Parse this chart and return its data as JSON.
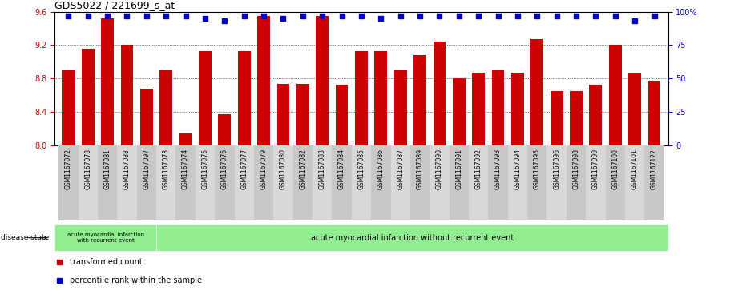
{
  "title": "GDS5022 / 221699_s_at",
  "samples": [
    "GSM1167072",
    "GSM1167078",
    "GSM1167081",
    "GSM1167088",
    "GSM1167097",
    "GSM1167073",
    "GSM1167074",
    "GSM1167075",
    "GSM1167076",
    "GSM1167077",
    "GSM1167079",
    "GSM1167080",
    "GSM1167082",
    "GSM1167083",
    "GSM1167084",
    "GSM1167085",
    "GSM1167086",
    "GSM1167087",
    "GSM1167089",
    "GSM1167090",
    "GSM1167091",
    "GSM1167092",
    "GSM1167093",
    "GSM1167094",
    "GSM1167095",
    "GSM1167096",
    "GSM1167098",
    "GSM1167099",
    "GSM1167100",
    "GSM1167101",
    "GSM1167122"
  ],
  "bar_values": [
    8.9,
    9.15,
    9.52,
    9.2,
    8.68,
    8.9,
    8.14,
    9.13,
    8.37,
    9.13,
    9.55,
    8.73,
    8.73,
    9.55,
    8.72,
    9.13,
    9.13,
    8.9,
    9.08,
    9.24,
    8.8,
    8.87,
    8.9,
    8.87,
    9.27,
    8.65,
    8.65,
    8.72,
    9.2,
    8.87,
    8.77
  ],
  "percentile_values": [
    97,
    97,
    97,
    97,
    97,
    97,
    97,
    95,
    93,
    97,
    97,
    95,
    97,
    97,
    97,
    97,
    95,
    97,
    97,
    97,
    97,
    97,
    97,
    97,
    97,
    97,
    97,
    97,
    97,
    93,
    97
  ],
  "bar_color": "#cc0000",
  "dot_color": "#0000cc",
  "ylim_left": [
    8.0,
    9.6
  ],
  "ylim_right": [
    0,
    100
  ],
  "yticks_left": [
    8.0,
    8.4,
    8.8,
    9.2,
    9.6
  ],
  "yticks_right": [
    0,
    25,
    50,
    75,
    100
  ],
  "grid_values": [
    8.4,
    8.8,
    9.2
  ],
  "n_recurrent": 5,
  "n_without": 26,
  "group1_label": "acute myocardial infarction\nwith recurrent event",
  "group2_label": "acute myocardial infarction without recurrent event",
  "group_color": "#90ee90",
  "legend_items": [
    {
      "label": "transformed count",
      "color": "#cc0000"
    },
    {
      "label": "percentile rank within the sample",
      "color": "#0000cc"
    }
  ],
  "disease_state_label": "disease state",
  "plot_bg": "#ffffff",
  "xtick_bg_even": "#c8c8c8",
  "xtick_bg_odd": "#d8d8d8"
}
